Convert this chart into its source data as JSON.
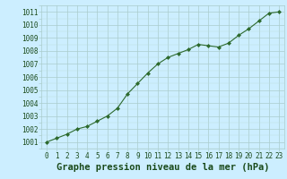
{
  "x": [
    0,
    1,
    2,
    3,
    4,
    5,
    6,
    7,
    8,
    9,
    10,
    11,
    12,
    13,
    14,
    15,
    16,
    17,
    18,
    19,
    20,
    21,
    22,
    23
  ],
  "y": [
    1001.0,
    1001.3,
    1001.6,
    1002.0,
    1002.2,
    1002.6,
    1003.0,
    1003.6,
    1004.7,
    1005.5,
    1006.3,
    1007.0,
    1007.5,
    1007.8,
    1008.1,
    1008.5,
    1008.4,
    1008.3,
    1008.6,
    1009.2,
    1009.7,
    1010.3,
    1010.9,
    1011.0
  ],
  "line_color": "#2d6a2d",
  "marker": "D",
  "marker_size": 2.0,
  "bg_color": "#cceeff",
  "grid_major_color": "#aacccc",
  "grid_minor_color": "#bbdddd",
  "text_color": "#1a4a1a",
  "ylabel_ticks": [
    1001,
    1002,
    1003,
    1004,
    1005,
    1006,
    1007,
    1008,
    1009,
    1010,
    1011
  ],
  "ylim": [
    1000.5,
    1011.5
  ],
  "xlim": [
    -0.5,
    23.5
  ],
  "title": "Graphe pression niveau de la mer (hPa)",
  "title_fontsize": 7.5,
  "tick_fontsize": 5.5
}
